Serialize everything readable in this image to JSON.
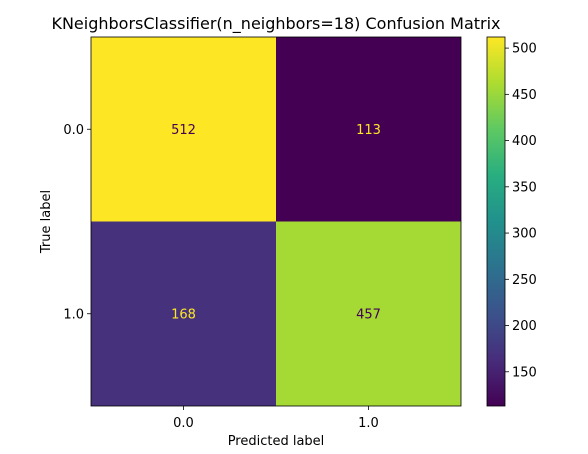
{
  "chart_data": {
    "type": "heatmap",
    "title": "KNeighborsClassifier(n_neighbors=18) Confusion Matrix",
    "xlabel": "Predicted label",
    "ylabel": "True label",
    "x_categories": [
      "0.0",
      "1.0"
    ],
    "y_categories": [
      "0.0",
      "1.0"
    ],
    "values": [
      [
        512,
        113
      ],
      [
        168,
        457
      ]
    ],
    "colormap": "viridis",
    "colorbar": {
      "range": [
        113,
        512
      ],
      "ticks": [
        "150",
        "200",
        "250",
        "300",
        "350",
        "400",
        "450",
        "500"
      ]
    },
    "grid": false
  }
}
